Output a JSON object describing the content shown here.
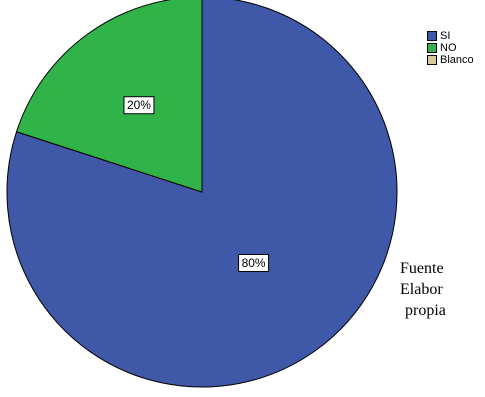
{
  "chart_data": {
    "type": "pie",
    "categories": [
      "SI",
      "NO",
      "Blanco"
    ],
    "values": [
      80,
      20,
      0
    ],
    "data_labels": [
      "80%",
      "20%",
      ""
    ],
    "colors": [
      "#3f58a8",
      "#30b44a",
      "#d8c99b"
    ],
    "legend_position": "top-right"
  },
  "source_note": {
    "line1": "Fuente",
    "line2": "Elabor",
    "line3": "propia"
  }
}
